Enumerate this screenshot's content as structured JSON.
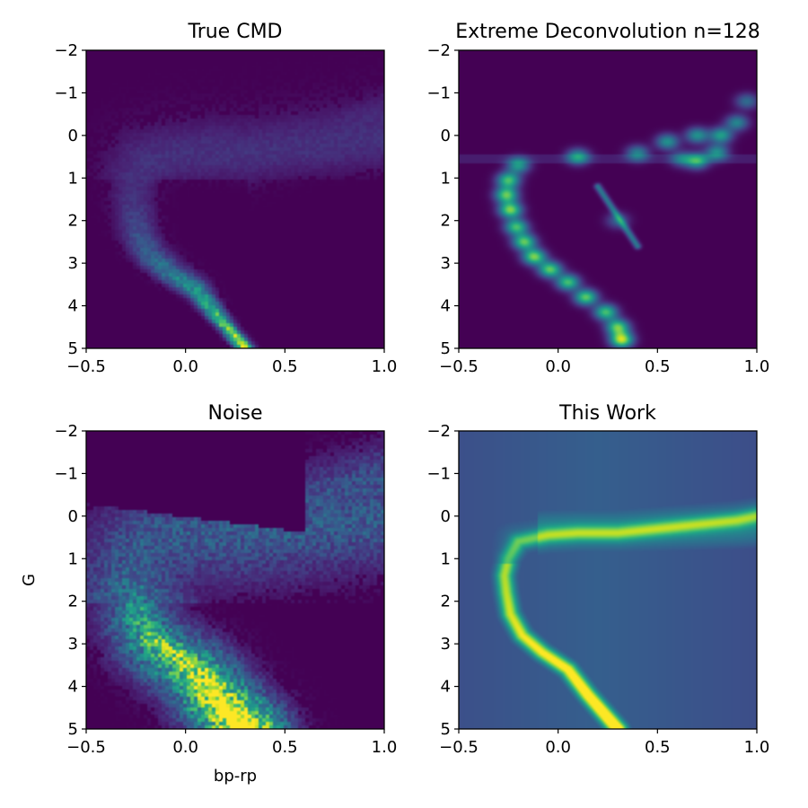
{
  "colors": {
    "viridis_low": "#440154",
    "viridis_mid": "#21918c",
    "viridis_high": "#fde725",
    "axis": "#000000"
  },
  "chart_data": [
    {
      "type": "heatmap",
      "title": "True CMD",
      "xlabel": "",
      "ylabel": "",
      "xlim": [
        -0.5,
        1.0
      ],
      "ylim": [
        5,
        -2
      ],
      "xticks": [
        "−0.5",
        "0.0",
        "0.5",
        "1.0"
      ],
      "yticks": [
        "−2",
        "−1",
        "0",
        "1",
        "2",
        "3",
        "4",
        "5"
      ],
      "colormap": "viridis",
      "style": "true",
      "ridge": {
        "bp_rp": [
          0.3,
          0.15,
          0.05,
          -0.08,
          -0.18,
          -0.24,
          -0.26,
          -0.27,
          -0.25,
          -0.2,
          -0.05,
          0.1,
          0.3,
          0.5,
          0.7,
          0.9,
          1.0
        ],
        "G": [
          5.0,
          4.2,
          3.6,
          3.2,
          2.8,
          2.3,
          1.8,
          1.4,
          1.0,
          0.6,
          0.45,
          0.4,
          0.4,
          0.3,
          0.2,
          0.1,
          0.0
        ]
      }
    },
    {
      "type": "heatmap",
      "title": "Extreme Deconvolution n=128",
      "xlabel": "",
      "ylabel": "",
      "xlim": [
        -0.5,
        1.0
      ],
      "ylim": [
        5,
        -2
      ],
      "xticks": [
        "−0.5",
        "0.0",
        "0.5",
        "1.0"
      ],
      "yticks": [
        "−2",
        "−1",
        "0",
        "1",
        "2",
        "3",
        "4",
        "5"
      ],
      "colormap": "viridis",
      "style": "xd",
      "components": [
        {
          "bp_rp": 0.32,
          "G": 4.8,
          "weight": 0.9
        },
        {
          "bp_rp": 0.3,
          "G": 4.5,
          "weight": 0.75
        },
        {
          "bp_rp": 0.24,
          "G": 4.15,
          "weight": 0.7
        },
        {
          "bp_rp": 0.14,
          "G": 3.8,
          "weight": 0.75
        },
        {
          "bp_rp": 0.05,
          "G": 3.45,
          "weight": 0.7
        },
        {
          "bp_rp": -0.04,
          "G": 3.15,
          "weight": 0.75
        },
        {
          "bp_rp": -0.12,
          "G": 2.85,
          "weight": 0.8
        },
        {
          "bp_rp": -0.17,
          "G": 2.5,
          "weight": 0.75
        },
        {
          "bp_rp": -0.21,
          "G": 2.15,
          "weight": 0.7
        },
        {
          "bp_rp": -0.24,
          "G": 1.75,
          "weight": 0.8
        },
        {
          "bp_rp": -0.26,
          "G": 1.4,
          "weight": 0.75
        },
        {
          "bp_rp": -0.25,
          "G": 1.05,
          "weight": 0.7
        },
        {
          "bp_rp": -0.2,
          "G": 0.7,
          "weight": 0.55
        },
        {
          "bp_rp": 0.1,
          "G": 0.5,
          "weight": 0.55
        },
        {
          "bp_rp": 0.4,
          "G": 0.42,
          "weight": 0.45
        },
        {
          "bp_rp": 0.55,
          "G": 0.15,
          "weight": 0.5
        },
        {
          "bp_rp": 0.7,
          "G": 0.6,
          "weight": 0.6
        },
        {
          "bp_rp": 0.82,
          "G": 0.0,
          "weight": 0.55
        },
        {
          "bp_rp": 0.8,
          "G": 0.4,
          "weight": 0.5
        },
        {
          "bp_rp": 0.9,
          "G": -0.3,
          "weight": 0.45
        },
        {
          "bp_rp": 0.95,
          "G": -0.8,
          "weight": 0.35
        },
        {
          "bp_rp": 0.62,
          "G": 0.55,
          "weight": 0.35
        },
        {
          "bp_rp": 0.7,
          "G": 0.0,
          "weight": 0.5
        },
        {
          "bp_rp": 0.3,
          "G": 2.0,
          "weight": 0.3
        }
      ]
    },
    {
      "type": "heatmap",
      "title": "Noise",
      "xlabel": "bp-rp",
      "ylabel": "G",
      "xlim": [
        -0.5,
        1.0
      ],
      "ylim": [
        5,
        -2
      ],
      "xticks": [
        "−0.5",
        "0.0",
        "0.5",
        "1.0"
      ],
      "yticks": [
        "−2",
        "−1",
        "0",
        "1",
        "2",
        "3",
        "4",
        "5"
      ],
      "colormap": "viridis",
      "style": "noise"
    },
    {
      "type": "heatmap",
      "title": "This Work",
      "xlabel": "",
      "ylabel": "",
      "xlim": [
        -0.5,
        1.0
      ],
      "ylim": [
        5,
        -2
      ],
      "xticks": [
        "−0.5",
        "0.0",
        "0.5",
        "1.0"
      ],
      "yticks": [
        "−2",
        "−1",
        "0",
        "1",
        "2",
        "3",
        "4",
        "5"
      ],
      "colormap": "viridis",
      "style": "smooth"
    }
  ]
}
